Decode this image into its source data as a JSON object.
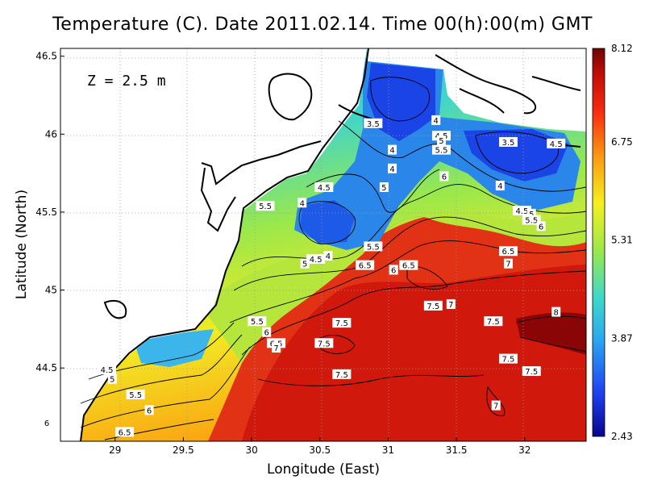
{
  "title": "Temperature (C). Date 2011.02.14. Time 00(h):00(m) GMT",
  "depth_label": "Z = 2.5 m",
  "chart_data": {
    "type": "heatmap",
    "title": "Temperature (C). Date 2011.02.14. Time 00(h):00(m) GMT",
    "xlabel": "Longitude (East)",
    "ylabel": "Latitude (North)",
    "xlim": [
      28.6,
      32.45
    ],
    "ylim": [
      44.03,
      46.55
    ],
    "x_ticks": [
      "29",
      "29.5",
      "30",
      "30.5",
      "31",
      "31.5",
      "32"
    ],
    "y_ticks": [
      "44.5",
      "45",
      "45.5",
      "46",
      "46.5"
    ],
    "grid": true,
    "colorbar": {
      "min": 2.43,
      "max": 8.12,
      "tick_labels": [
        "8.12",
        "6.75",
        "5.31",
        "3.87",
        "2.43"
      ],
      "colors": [
        "#06068c",
        "#1f3ff0",
        "#2aa8f0",
        "#3fd9c8",
        "#9be84a",
        "#f5f020",
        "#fb9a12",
        "#f52a10",
        "#c40e08",
        "#6e0404"
      ]
    },
    "contour_labels": [
      {
        "label": "3.5",
        "lon": 30.89,
        "lat": 46.07
      },
      {
        "label": "4",
        "lon": 31.35,
        "lat": 46.09
      },
      {
        "label": "4.5",
        "lon": 31.39,
        "lat": 45.99
      },
      {
        "label": "5",
        "lon": 31.39,
        "lat": 45.96
      },
      {
        "label": "5.5",
        "lon": 31.39,
        "lat": 45.9
      },
      {
        "label": "4",
        "lon": 31.03,
        "lat": 45.9
      },
      {
        "label": "3.5",
        "lon": 31.88,
        "lat": 45.95
      },
      {
        "label": "4.5",
        "lon": 32.23,
        "lat": 45.94
      },
      {
        "label": "4",
        "lon": 31.03,
        "lat": 45.78
      },
      {
        "label": "6",
        "lon": 31.41,
        "lat": 45.73
      },
      {
        "label": "4.5",
        "lon": 30.53,
        "lat": 45.66
      },
      {
        "label": "5",
        "lon": 30.97,
        "lat": 45.66
      },
      {
        "label": "4",
        "lon": 31.82,
        "lat": 45.67
      },
      {
        "label": "4",
        "lon": 30.37,
        "lat": 45.56
      },
      {
        "label": "5.5",
        "lon": 30.1,
        "lat": 45.54
      },
      {
        "label": "4.5",
        "lon": 31.98,
        "lat": 45.51
      },
      {
        "label": "5",
        "lon": 32.05,
        "lat": 45.49
      },
      {
        "label": "5.5",
        "lon": 32.05,
        "lat": 45.45
      },
      {
        "label": "6",
        "lon": 32.12,
        "lat": 45.41
      },
      {
        "label": "5.5",
        "lon": 30.89,
        "lat": 45.28
      },
      {
        "label": "6.5",
        "lon": 31.88,
        "lat": 45.25
      },
      {
        "label": "4",
        "lon": 30.56,
        "lat": 45.22
      },
      {
        "label": "4.5",
        "lon": 30.47,
        "lat": 45.2
      },
      {
        "label": "5",
        "lon": 30.39,
        "lat": 45.17
      },
      {
        "label": "6.5",
        "lon": 30.83,
        "lat": 45.16
      },
      {
        "label": "6.5",
        "lon": 31.15,
        "lat": 45.16
      },
      {
        "label": "7",
        "lon": 31.88,
        "lat": 45.17
      },
      {
        "label": "6",
        "lon": 31.04,
        "lat": 45.13
      },
      {
        "label": "7.5",
        "lon": 31.33,
        "lat": 44.9
      },
      {
        "label": "7",
        "lon": 31.46,
        "lat": 44.91
      },
      {
        "label": "8",
        "lon": 32.23,
        "lat": 44.86
      },
      {
        "label": "5.5",
        "lon": 30.04,
        "lat": 44.8
      },
      {
        "label": "7.5",
        "lon": 30.66,
        "lat": 44.79
      },
      {
        "label": "7.5",
        "lon": 31.77,
        "lat": 44.8
      },
      {
        "label": "6",
        "lon": 30.11,
        "lat": 44.73
      },
      {
        "label": "6.5",
        "lon": 30.18,
        "lat": 44.66
      },
      {
        "label": "7.5",
        "lon": 30.53,
        "lat": 44.66
      },
      {
        "label": "7",
        "lon": 30.18,
        "lat": 44.63
      },
      {
        "label": "7.5",
        "lon": 31.88,
        "lat": 44.56
      },
      {
        "label": "4.5",
        "lon": 28.94,
        "lat": 44.49
      },
      {
        "label": "7.5",
        "lon": 30.66,
        "lat": 44.46
      },
      {
        "label": "7.5",
        "lon": 32.05,
        "lat": 44.48
      },
      {
        "label": "5",
        "lon": 28.98,
        "lat": 44.43
      },
      {
        "label": "5.5",
        "lon": 29.15,
        "lat": 44.33
      },
      {
        "label": "6",
        "lon": 29.25,
        "lat": 44.23
      },
      {
        "label": "7",
        "lon": 31.79,
        "lat": 44.26
      },
      {
        "label": "6",
        "lon": 28.5,
        "lat": 44.15
      },
      {
        "label": "6.5",
        "lon": 29.07,
        "lat": 44.09
      }
    ]
  }
}
